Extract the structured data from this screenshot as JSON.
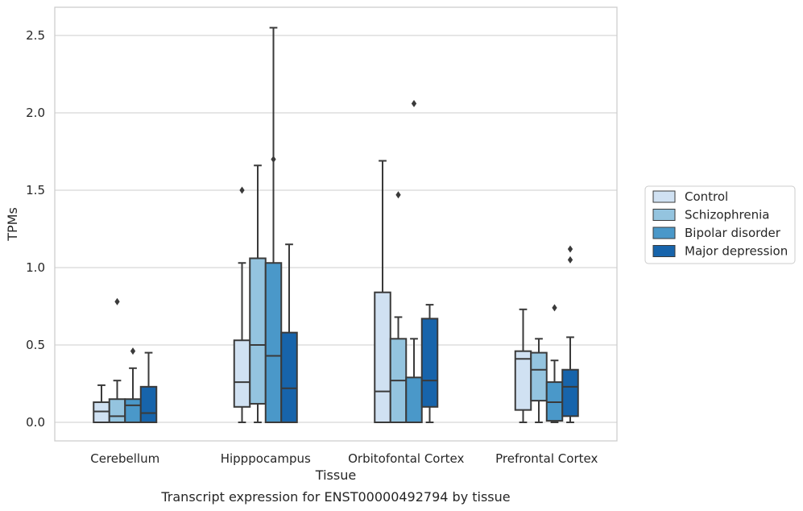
{
  "chart_data": {
    "type": "box",
    "title": "",
    "caption": "Transcript expression for ENST00000492794 by tissue",
    "xlabel": "Tissue",
    "ylabel": "TPMs",
    "ylim": [
      -0.12,
      2.68
    ],
    "yticks": [
      "0.0",
      "0.5",
      "1.0",
      "1.5",
      "2.0",
      "2.5"
    ],
    "grid": "horizontal",
    "legend_position": "right",
    "categories": [
      "Cerebellum",
      "Hipppocampus",
      "Orbitofontal Cortex",
      "Prefrontal Cortex"
    ],
    "series": [
      {
        "name": "Control",
        "color": "#d0e1f2",
        "boxes": [
          {
            "whislo": 0.0,
            "q1": 0.0,
            "med": 0.07,
            "q3": 0.13,
            "whishi": 0.24,
            "fliers": []
          },
          {
            "whislo": 0.0,
            "q1": 0.1,
            "med": 0.26,
            "q3": 0.53,
            "whishi": 1.03,
            "fliers": [
              1.5
            ]
          },
          {
            "whislo": 0.0,
            "q1": 0.0,
            "med": 0.2,
            "q3": 0.84,
            "whishi": 1.69,
            "fliers": []
          },
          {
            "whislo": 0.0,
            "q1": 0.08,
            "med": 0.41,
            "q3": 0.46,
            "whishi": 0.73,
            "fliers": []
          }
        ]
      },
      {
        "name": "Schizophrenia",
        "color": "#94c4df",
        "boxes": [
          {
            "whislo": 0.0,
            "q1": 0.0,
            "med": 0.04,
            "q3": 0.15,
            "whishi": 0.27,
            "fliers": [
              0.78
            ]
          },
          {
            "whislo": 0.0,
            "q1": 0.12,
            "med": 0.5,
            "q3": 1.06,
            "whishi": 1.66,
            "fliers": []
          },
          {
            "whislo": 0.0,
            "q1": 0.0,
            "med": 0.27,
            "q3": 0.54,
            "whishi": 0.68,
            "fliers": [
              1.47
            ]
          },
          {
            "whislo": 0.0,
            "q1": 0.14,
            "med": 0.34,
            "q3": 0.45,
            "whishi": 0.54,
            "fliers": []
          }
        ]
      },
      {
        "name": "Bipolar disorder",
        "color": "#4a98c9",
        "boxes": [
          {
            "whislo": 0.0,
            "q1": 0.0,
            "med": 0.11,
            "q3": 0.15,
            "whishi": 0.35,
            "fliers": [
              0.46
            ]
          },
          {
            "whislo": 0.0,
            "q1": 0.0,
            "med": 0.43,
            "q3": 1.03,
            "whishi": 2.55,
            "fliers": [
              1.7
            ]
          },
          {
            "whislo": 0.0,
            "q1": 0.0,
            "med": 0.0,
            "q3": 0.29,
            "whishi": 0.54,
            "fliers": [
              2.06
            ]
          },
          {
            "whislo": 0.0,
            "q1": 0.01,
            "med": 0.13,
            "q3": 0.26,
            "whishi": 0.4,
            "fliers": [
              0.74
            ]
          }
        ]
      },
      {
        "name": "Major depression",
        "color": "#1764ab",
        "boxes": [
          {
            "whislo": 0.0,
            "q1": 0.0,
            "med": 0.06,
            "q3": 0.23,
            "whishi": 0.45,
            "fliers": []
          },
          {
            "whislo": 0.0,
            "q1": 0.0,
            "med": 0.22,
            "q3": 0.58,
            "whishi": 1.15,
            "fliers": []
          },
          {
            "whislo": 0.0,
            "q1": 0.1,
            "med": 0.27,
            "q3": 0.67,
            "whishi": 0.76,
            "fliers": []
          },
          {
            "whislo": 0.0,
            "q1": 0.04,
            "med": 0.23,
            "q3": 0.34,
            "whishi": 0.55,
            "fliers": [
              1.05,
              1.12
            ]
          }
        ]
      }
    ]
  }
}
